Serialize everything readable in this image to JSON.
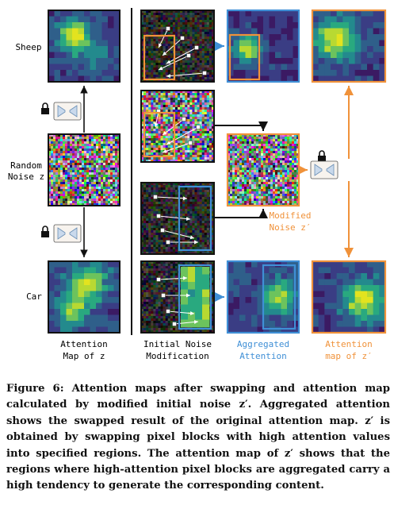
{
  "rows": {
    "sheep": "Sheep",
    "random_line1": "Random",
    "random_line2": "Noise z",
    "car": "Car"
  },
  "columns": {
    "attention": [
      "Attention",
      "Map of z"
    ],
    "initial": [
      "Initial Noise",
      "Modification"
    ],
    "aggregated": [
      "Aggregated",
      "Attention"
    ],
    "attn_zprime": [
      "Attention",
      "map of z′"
    ]
  },
  "modified_noise": [
    "Modified",
    "Noise z′"
  ],
  "caption": "Figure 6: Attention maps after swapping and attention map calculated by modified initial noise z′. Aggregated attention shows the swapped result of the original attention map. z′ is obtained by swapping pixel blocks with high attention values into specified regions. The attention map of z′ shows that the regions where high-attention pixel blocks are aggregated carry a high tendency to generate the corresponding content.",
  "colors": {
    "orange": "#f0923a",
    "blue": "#3f8fd6",
    "black": "#111111",
    "viridis_dark": "#3b1a63",
    "viridis_bright": "#dfe32a"
  },
  "icons": [
    "lock-icon",
    "swap-icon"
  ]
}
